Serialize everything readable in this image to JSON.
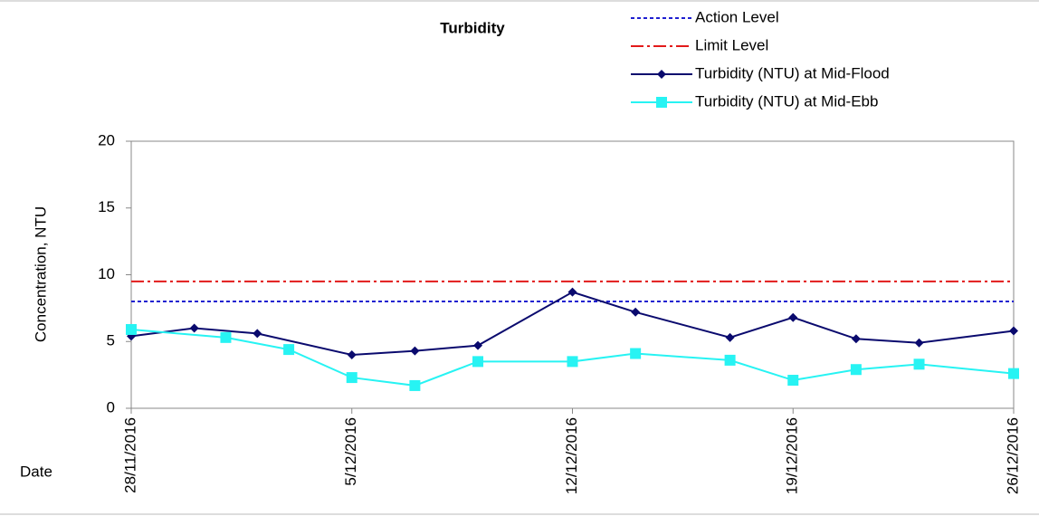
{
  "chart_data": {
    "type": "line",
    "title": "Turbidity",
    "y_label": "Concentration, NTU",
    "x_label": "Date",
    "xlim": [
      "2016-11-28",
      "2016-12-26"
    ],
    "xticks": [
      {
        "value": "2016-11-28",
        "label": "28/11/2016"
      },
      {
        "value": "2016-12-05",
        "label": "5/12/2016"
      },
      {
        "value": "2016-12-12",
        "label": "12/12/2016"
      },
      {
        "value": "2016-12-19",
        "label": "19/12/2016"
      },
      {
        "value": "2016-12-26",
        "label": "26/12/2016"
      }
    ],
    "ylim": [
      0,
      20
    ],
    "yticks": [
      0,
      5,
      10,
      15,
      20
    ],
    "grid": false,
    "series": [
      {
        "name": "Action Level",
        "color": "#1f1fd0",
        "dash": "4 3",
        "level": 8
      },
      {
        "name": "Limit Level",
        "color": "#e21a1a",
        "dash": "14 4 3 4",
        "level": 9.5
      },
      {
        "name": "Turbidity (NTU) at Mid-Flood",
        "color": "#0a0a6e",
        "marker": "diamond",
        "x": [
          "2016-11-28",
          "2016-11-30",
          "2016-12-02",
          "2016-12-05",
          "2016-12-07",
          "2016-12-09",
          "2016-12-12",
          "2016-12-14",
          "2016-12-17",
          "2016-12-19",
          "2016-12-21",
          "2016-12-23",
          "2016-12-26"
        ],
        "values": [
          5.4,
          6.0,
          5.6,
          4.0,
          4.3,
          4.7,
          8.7,
          7.2,
          5.3,
          6.8,
          5.2,
          4.9,
          5.8
        ]
      },
      {
        "name": "Turbidity (NTU) at Mid-Ebb",
        "color": "#27f3f3",
        "marker": "square",
        "x": [
          "2016-11-28",
          "2016-12-01",
          "2016-12-03",
          "2016-12-05",
          "2016-12-07",
          "2016-12-09",
          "2016-12-12",
          "2016-12-14",
          "2016-12-17",
          "2016-12-19",
          "2016-12-21",
          "2016-12-23",
          "2016-12-26"
        ],
        "values": [
          5.9,
          5.3,
          4.4,
          2.3,
          1.7,
          3.5,
          3.5,
          4.1,
          3.6,
          2.1,
          2.9,
          3.3,
          2.6
        ]
      }
    ]
  }
}
